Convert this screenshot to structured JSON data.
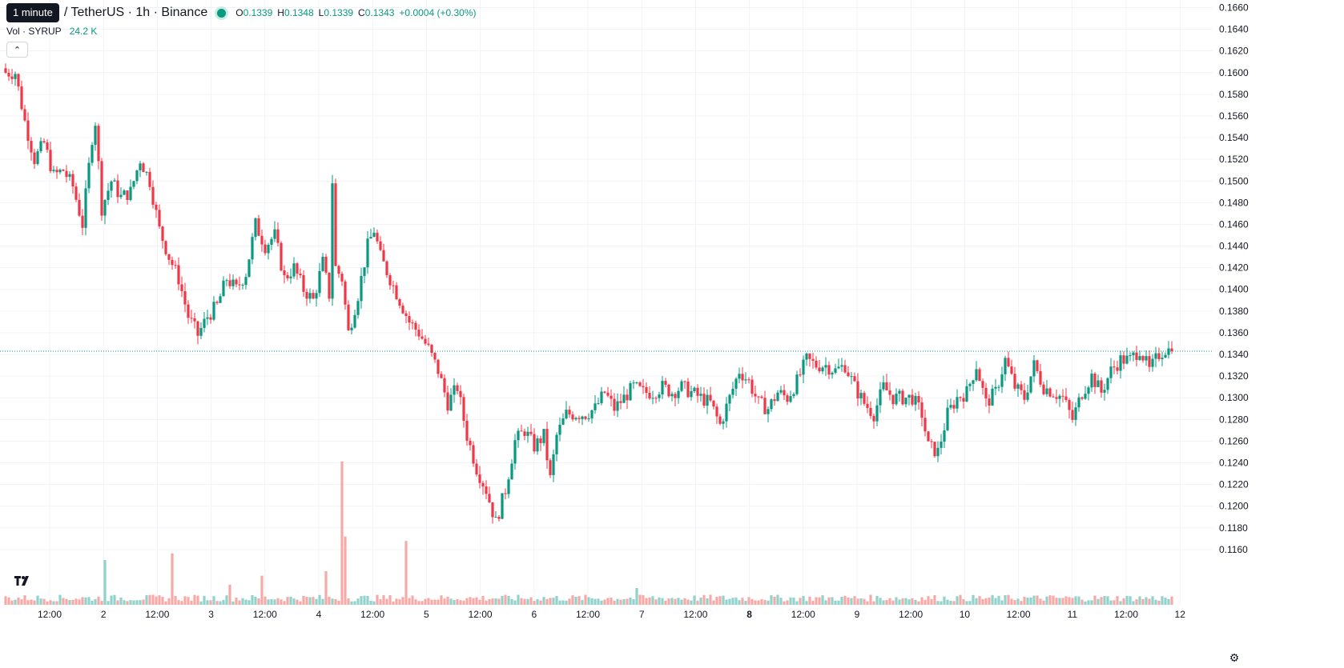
{
  "header": {
    "interval_tooltip": "1 minute",
    "symbol": "/ TetherUS · 1h · Binance",
    "ohlc": {
      "o_label": "O",
      "o": "0.1339",
      "h_label": "H",
      "h": "0.1348",
      "l_label": "L",
      "l": "0.1339",
      "c_label": "C",
      "c": "0.1343",
      "change": "+0.0004 (+0.30%)"
    },
    "volume_label": "Vol · SYRUP",
    "volume_value": "24.2 K"
  },
  "colors": {
    "up": "#089981",
    "down": "#f23645",
    "up_vol": "#92d2cc",
    "down_vol": "#f7a9a7",
    "grid": "#f0f3fa",
    "axis_text": "#131722"
  },
  "icons": {
    "collapse": "chevron-up-icon",
    "logo": "tradingview-logo-icon",
    "settings": "gear-icon"
  },
  "chart_data": {
    "type": "candlestick",
    "timeframe": "1h",
    "y_axis": {
      "ticks": [
        "0.1160",
        "0.1180",
        "0.1200",
        "0.1220",
        "0.1240",
        "0.1260",
        "0.1280",
        "0.1300",
        "0.1320",
        "0.1340",
        "0.1360",
        "0.1380",
        "0.1400",
        "0.1420",
        "0.1440",
        "0.1460",
        "0.1480",
        "0.1500",
        "0.1520",
        "0.1540",
        "0.1560",
        "0.1580",
        "0.1600",
        "0.1620",
        "0.1640",
        "0.1660"
      ],
      "ylim": [
        0.1109,
        0.1667
      ]
    },
    "x_axis": {
      "ticks": [
        {
          "label": "12:00",
          "bold": false
        },
        {
          "label": "2",
          "bold": false
        },
        {
          "label": "12:00",
          "bold": false
        },
        {
          "label": "3",
          "bold": false
        },
        {
          "label": "12:00",
          "bold": false
        },
        {
          "label": "4",
          "bold": false
        },
        {
          "label": "12:00",
          "bold": false
        },
        {
          "label": "5",
          "bold": false
        },
        {
          "label": "12:00",
          "bold": false
        },
        {
          "label": "6",
          "bold": false
        },
        {
          "label": "12:00",
          "bold": false
        },
        {
          "label": "7",
          "bold": false
        },
        {
          "label": "12:00",
          "bold": false
        },
        {
          "label": "8",
          "bold": true
        },
        {
          "label": "12:00",
          "bold": false
        },
        {
          "label": "9",
          "bold": false
        },
        {
          "label": "12:00",
          "bold": false
        },
        {
          "label": "10",
          "bold": false
        },
        {
          "label": "12:00",
          "bold": false
        },
        {
          "label": "11",
          "bold": false
        },
        {
          "label": "12:00",
          "bold": false
        },
        {
          "label": "12",
          "bold": false
        }
      ]
    },
    "last_price": "0.1343",
    "last_volume": "24.2K",
    "anchors": [
      [
        0,
        0.16
      ],
      [
        3,
        0.16
      ],
      [
        6,
        0.1555
      ],
      [
        9,
        0.152
      ],
      [
        12,
        0.1535
      ],
      [
        15,
        0.1505
      ],
      [
        18,
        0.151
      ],
      [
        21,
        0.1495
      ],
      [
        24,
        0.146
      ],
      [
        27,
        0.154
      ],
      [
        28,
        0.1555
      ],
      [
        30,
        0.1475
      ],
      [
        33,
        0.15
      ],
      [
        36,
        0.1485
      ],
      [
        39,
        0.149
      ],
      [
        42,
        0.152
      ],
      [
        45,
        0.15
      ],
      [
        48,
        0.1455
      ],
      [
        51,
        0.143
      ],
      [
        54,
        0.141
      ],
      [
        57,
        0.1375
      ],
      [
        60,
        0.1358
      ],
      [
        63,
        0.1375
      ],
      [
        66,
        0.1385
      ],
      [
        69,
        0.141
      ],
      [
        72,
        0.14
      ],
      [
        75,
        0.1415
      ],
      [
        78,
        0.146
      ],
      [
        81,
        0.144
      ],
      [
        84,
        0.145
      ],
      [
        87,
        0.141
      ],
      [
        90,
        0.142
      ],
      [
        93,
        0.14
      ],
      [
        96,
        0.139
      ],
      [
        99,
        0.1425
      ],
      [
        101,
        0.1395
      ],
      [
        102,
        0.15
      ],
      [
        103,
        0.142
      ],
      [
        105,
        0.141
      ],
      [
        107,
        0.136
      ],
      [
        110,
        0.1395
      ],
      [
        113,
        0.144
      ],
      [
        115,
        0.1455
      ],
      [
        117,
        0.143
      ],
      [
        120,
        0.141
      ],
      [
        123,
        0.139
      ],
      [
        126,
        0.137
      ],
      [
        129,
        0.136
      ],
      [
        132,
        0.1345
      ],
      [
        135,
        0.1325
      ],
      [
        138,
        0.1295
      ],
      [
        141,
        0.131
      ],
      [
        144,
        0.1265
      ],
      [
        147,
        0.1235
      ],
      [
        150,
        0.1215
      ],
      [
        153,
        0.1185
      ],
      [
        156,
        0.1215
      ],
      [
        159,
        0.126
      ],
      [
        162,
        0.127
      ],
      [
        165,
        0.1255
      ],
      [
        168,
        0.1265
      ],
      [
        170,
        0.1225
      ],
      [
        172,
        0.1265
      ],
      [
        175,
        0.1285
      ],
      [
        178,
        0.1285
      ],
      [
        181,
        0.1285
      ],
      [
        184,
        0.129
      ],
      [
        187,
        0.1305
      ],
      [
        190,
        0.129
      ],
      [
        193,
        0.13
      ],
      [
        196,
        0.131
      ],
      [
        199,
        0.1305
      ],
      [
        202,
        0.1305
      ],
      [
        205,
        0.131
      ],
      [
        208,
        0.1305
      ],
      [
        211,
        0.131
      ],
      [
        214,
        0.1305
      ],
      [
        217,
        0.13
      ],
      [
        220,
        0.1295
      ],
      [
        223,
        0.1275
      ],
      [
        226,
        0.13
      ],
      [
        229,
        0.1325
      ],
      [
        232,
        0.1315
      ],
      [
        235,
        0.1295
      ],
      [
        238,
        0.129
      ],
      [
        241,
        0.1305
      ],
      [
        244,
        0.13
      ],
      [
        247,
        0.1315
      ],
      [
        250,
        0.1335
      ],
      [
        253,
        0.133
      ],
      [
        256,
        0.133
      ],
      [
        259,
        0.1325
      ],
      [
        262,
        0.133
      ],
      [
        265,
        0.131
      ],
      [
        268,
        0.1295
      ],
      [
        271,
        0.1285
      ],
      [
        274,
        0.131
      ],
      [
        277,
        0.13
      ],
      [
        280,
        0.13
      ],
      [
        283,
        0.13
      ],
      [
        286,
        0.1285
      ],
      [
        288,
        0.1255
      ],
      [
        291,
        0.125
      ],
      [
        294,
        0.1285
      ],
      [
        297,
        0.13
      ],
      [
        300,
        0.1305
      ],
      [
        303,
        0.133
      ],
      [
        306,
        0.1295
      ],
      [
        309,
        0.1305
      ],
      [
        312,
        0.1335
      ],
      [
        315,
        0.131
      ],
      [
        318,
        0.13
      ],
      [
        321,
        0.133
      ],
      [
        324,
        0.131
      ],
      [
        327,
        0.1305
      ],
      [
        330,
        0.13
      ],
      [
        333,
        0.128
      ],
      [
        336,
        0.1305
      ],
      [
        339,
        0.132
      ],
      [
        342,
        0.1305
      ],
      [
        345,
        0.1325
      ],
      [
        348,
        0.1335
      ],
      [
        351,
        0.1335
      ],
      [
        354,
        0.1345
      ],
      [
        357,
        0.1325
      ],
      [
        360,
        0.134
      ],
      [
        362,
        0.1345
      ],
      [
        364,
        0.1343
      ]
    ],
    "volume": {
      "baseline": 0.3,
      "spikes": [
        [
          31,
          4
        ],
        [
          52,
          4.6
        ],
        [
          70,
          1.8
        ],
        [
          80,
          2.6
        ],
        [
          100,
          3
        ],
        [
          105,
          12.8
        ],
        [
          106,
          6.1
        ],
        [
          125,
          5.7
        ],
        [
          197,
          1.5
        ]
      ]
    }
  }
}
